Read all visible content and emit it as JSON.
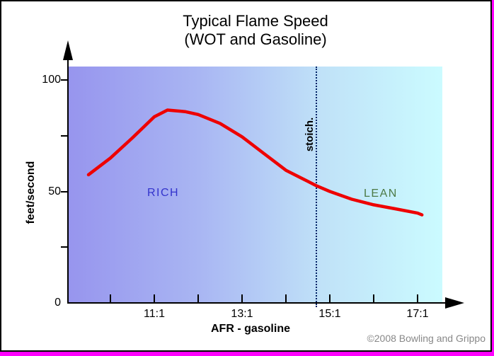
{
  "frame": {
    "shadow_color": "#ff00ff",
    "border_color": "#000000"
  },
  "chart_data": {
    "type": "line",
    "title": "Typical Flame Speed",
    "subtitle": "(WOT and Gasoline)",
    "xlabel": "AFR - gasoline",
    "ylabel": "feet/second",
    "xlim": [
      9.4,
      17.7
    ],
    "ylim": [
      0,
      106
    ],
    "grid": false,
    "legend": "none",
    "x_axis": {
      "ticks": [
        {
          "label": "11:1",
          "afr": 11
        },
        {
          "label": "13:1",
          "afr": 13
        },
        {
          "label": "15:1",
          "afr": 15
        },
        {
          "label": "17:1",
          "afr": 17
        }
      ],
      "minor_tick_afrs": [
        10,
        12,
        14,
        16
      ]
    },
    "y_axis": {
      "ticks": [
        {
          "label": "100",
          "value": 100
        },
        {
          "label": "50",
          "value": 50
        },
        {
          "label": "0",
          "value": 0
        }
      ],
      "minor_tick_values": [
        75,
        25
      ]
    },
    "series": [
      {
        "name": "flame-speed-curve",
        "x": [
          9.5,
          10,
          10.5,
          11,
          11.3,
          11.7,
          12,
          12.5,
          13,
          13.5,
          14,
          14.5,
          14.7,
          15,
          15.5,
          16,
          16.5,
          17,
          17.1
        ],
        "y": [
          57.5,
          65,
          74,
          83.5,
          86.5,
          85.8,
          84.5,
          80.5,
          74.5,
          67,
          59.5,
          54.5,
          52.5,
          50,
          46.5,
          44,
          42.2,
          40.3,
          39.5
        ]
      }
    ],
    "line_color": "#ee0000",
    "plot_bg_gradient": [
      "#9795ee",
      "#a9b6f3",
      "#c0e2f8",
      "#cbfbff"
    ],
    "annotations": {
      "rich_label": "RICH",
      "rich_color": "#3333cc",
      "lean_label": "LEAN",
      "lean_color": "#4d7a45",
      "stoich_label": "stoich.",
      "stoich_afr": 14.7,
      "stoich_line_color": "#002266"
    }
  },
  "footer": {
    "copyright": "©2008 Bowling and Grippo",
    "copyright_color": "#888888"
  }
}
